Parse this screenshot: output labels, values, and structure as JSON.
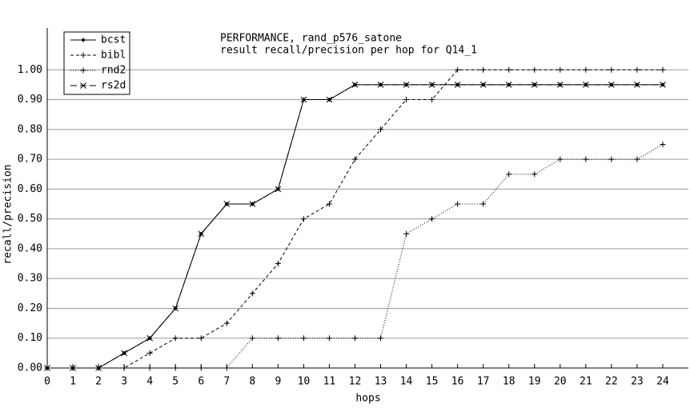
{
  "chart_data": {
    "type": "line",
    "title": "PERFORMANCE, rand_p576_satone",
    "subtitle": "result recall/precision per hop for Q14_1",
    "x_label": "hops",
    "y_label": "recall/precision",
    "x": [
      0,
      1,
      2,
      3,
      4,
      5,
      6,
      7,
      8,
      9,
      10,
      11,
      12,
      13,
      14,
      15,
      16,
      17,
      18,
      19,
      20,
      21,
      22,
      23,
      24
    ],
    "xlim": [
      0,
      25
    ],
    "ylim": [
      0,
      1.1
    ],
    "xticks": [
      0,
      1,
      2,
      3,
      4,
      5,
      6,
      7,
      8,
      9,
      10,
      11,
      12,
      13,
      14,
      15,
      16,
      17,
      18,
      19,
      20,
      21,
      22,
      23,
      24
    ],
    "yticks": [
      {
        "value": 0,
        "label": "0.00"
      },
      {
        "value": 0.1,
        "label": "0.10"
      },
      {
        "value": 0.2,
        "label": "0.20"
      },
      {
        "value": 0.3,
        "label": "0.30"
      },
      {
        "value": 0.4,
        "label": "0.40"
      },
      {
        "value": 0.5,
        "label": "0.50"
      },
      {
        "value": 0.6,
        "label": "0.60"
      },
      {
        "value": 0.7,
        "label": "0.70"
      },
      {
        "value": 0.8,
        "label": "0.80"
      },
      {
        "value": 0.9,
        "label": "0.90"
      },
      {
        "value": 1.0,
        "label": "1.00"
      }
    ],
    "grid": true,
    "legend": "top-left",
    "series": [
      {
        "name": "bcst",
        "color": "#000000",
        "dash": "none",
        "marker": "dot",
        "values": [
          0,
          0,
          0,
          0.05,
          0.1,
          0.2,
          0.45,
          0.55,
          0.55,
          0.6,
          0.9,
          0.9,
          0.95,
          0.95,
          0.95,
          0.95,
          0.95,
          0.95,
          0.95,
          0.95,
          0.95,
          0.95,
          0.95,
          0.95,
          0.95
        ]
      },
      {
        "name": "bibl",
        "color": "#000000",
        "dash": "4 3",
        "marker": "plus",
        "values": [
          0,
          0,
          0,
          0,
          0.05,
          0.1,
          0.1,
          0.15,
          0.25,
          0.35,
          0.5,
          0.55,
          0.7,
          0.8,
          0.9,
          0.9,
          1.0,
          1.0,
          1.0,
          1.0,
          1.0,
          1.0,
          1.0,
          1.0,
          1.0
        ]
      },
      {
        "name": "rnd2",
        "color": "#000000",
        "dash": "1 2",
        "marker": "plus",
        "values": [
          0,
          0,
          0,
          0,
          0,
          0,
          0,
          0,
          0.1,
          0.1,
          0.1,
          0.1,
          0.1,
          0.1,
          0.45,
          0.5,
          0.55,
          0.55,
          0.65,
          0.65,
          0.7,
          0.7,
          0.7,
          0.7,
          0.75
        ]
      },
      {
        "name": "rs2d",
        "color": "#000000",
        "dash": "8 4",
        "marker": "cross",
        "values": [
          0,
          0,
          0,
          0.05,
          0.1,
          0.2,
          0.45,
          0.55,
          0.55,
          0.6,
          0.9,
          0.9,
          0.95,
          0.95,
          0.95,
          0.95,
          0.95,
          0.95,
          0.95,
          0.95,
          0.95,
          0.95,
          0.95,
          0.95,
          0.95
        ]
      }
    ]
  }
}
